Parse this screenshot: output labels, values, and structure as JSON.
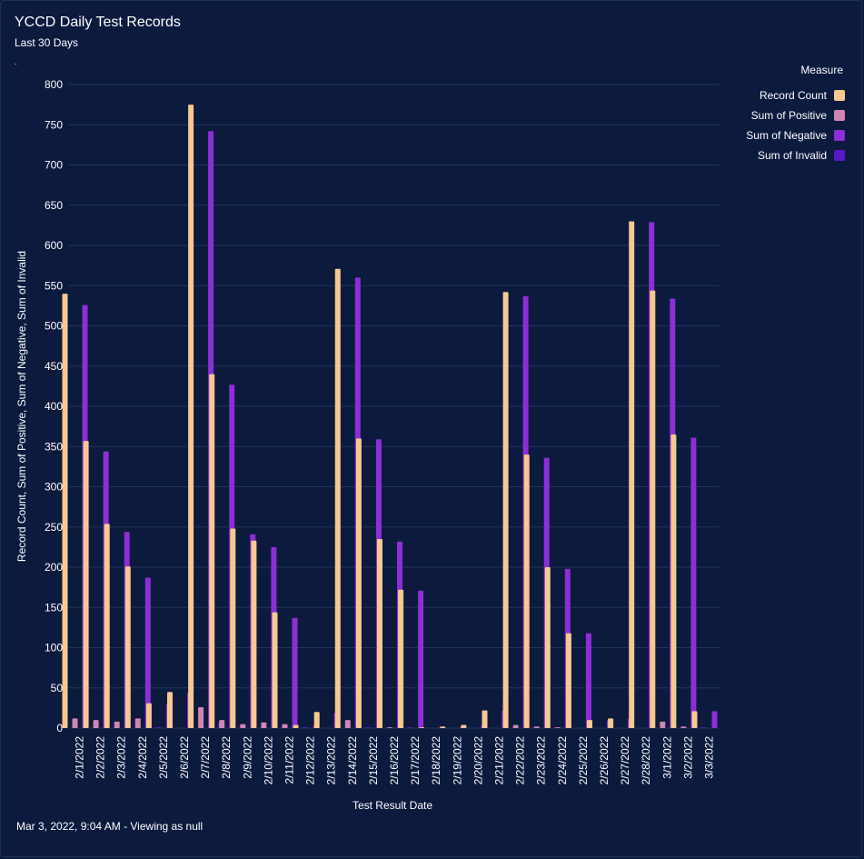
{
  "header": {
    "title": "YCCD Daily Test Records",
    "subtitle": "Last 30 Days",
    "dot": "."
  },
  "footer": {
    "text": "Mar 3, 2022, 9:04 AM - Viewing as null"
  },
  "legend": {
    "title": "Measure",
    "items": [
      {
        "label": "Record Count",
        "color": "#f8c891"
      },
      {
        "label": "Sum of Positive",
        "color": "#cf86b4"
      },
      {
        "label": "Sum of Negative",
        "color": "#8d2ed6"
      },
      {
        "label": "Sum of Invalid",
        "color": "#5a18c9"
      }
    ]
  },
  "colors": {
    "grid": "#22345e",
    "text": "#ffffff"
  },
  "chart_data": {
    "type": "bar",
    "xlabel": "Test Result Date",
    "ylabel": "Record Count, Sum of Positive, Sum of Negative, Sum of Invalid",
    "ylim": [
      0,
      800
    ],
    "yticks": [
      0,
      50,
      100,
      150,
      200,
      250,
      300,
      350,
      400,
      450,
      500,
      550,
      600,
      650,
      700,
      750,
      800
    ],
    "grid": true,
    "legend_position": "top-right",
    "categories": [
      "2/1/2022",
      "2/2/2022",
      "2/3/2022",
      "2/4/2022",
      "2/5/2022",
      "2/6/2022",
      "2/7/2022",
      "2/8/2022",
      "2/9/2022",
      "2/10/2022",
      "2/11/2022",
      "2/12/2022",
      "2/13/2022",
      "2/14/2022",
      "2/15/2022",
      "2/16/2022",
      "2/17/2022",
      "2/18/2022",
      "2/19/2022",
      "2/20/2022",
      "2/21/2022",
      "2/22/2022",
      "2/23/2022",
      "2/24/2022",
      "2/25/2022",
      "2/26/2022",
      "2/27/2022",
      "2/28/2022",
      "3/1/2022",
      "3/2/2022",
      "3/3/2022"
    ],
    "series": [
      {
        "name": "Record Count",
        "color": "#f8c891",
        "values": [
          540,
          357,
          254,
          201,
          31,
          45,
          775,
          440,
          248,
          233,
          144,
          4,
          20,
          571,
          360,
          235,
          172,
          1,
          2,
          4,
          22,
          542,
          340,
          200,
          118,
          10,
          12,
          630,
          544,
          365,
          21
        ]
      },
      {
        "name": "Sum of Positive",
        "color": "#cf86b4",
        "values": [
          12,
          10,
          8,
          12,
          0,
          0,
          26,
          10,
          5,
          7,
          5,
          0,
          0,
          10,
          0,
          1,
          0,
          0,
          0,
          0,
          0,
          4,
          2,
          1,
          0,
          0,
          0,
          0,
          8,
          2,
          0
        ]
      },
      {
        "name": "Sum of Negative",
        "color": "#8d2ed6",
        "values": [
          526,
          344,
          244,
          187,
          30,
          44,
          742,
          427,
          241,
          225,
          137,
          3,
          19,
          560,
          359,
          232,
          171,
          1,
          2,
          4,
          22,
          537,
          336,
          198,
          118,
          10,
          12,
          629,
          534,
          361,
          21
        ]
      },
      {
        "name": "Sum of Invalid",
        "color": "#5a18c9",
        "values": [
          1,
          1,
          1,
          1,
          0,
          0,
          6,
          1,
          1,
          1,
          1,
          0,
          0,
          1,
          0,
          1,
          0,
          0,
          0,
          0,
          0,
          1,
          1,
          0,
          0,
          0,
          0,
          0,
          1,
          1,
          0
        ]
      }
    ]
  }
}
